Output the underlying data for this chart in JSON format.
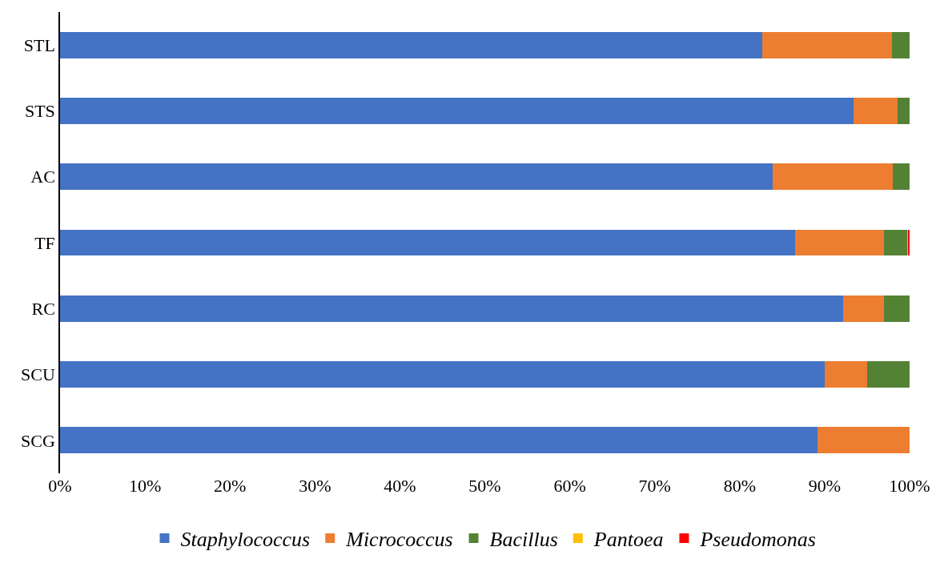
{
  "chart_data": {
    "type": "bar",
    "orientation": "horizontal",
    "stacked": true,
    "categories": [
      "STL",
      "STS",
      "AC",
      "TF",
      "RC",
      "SCU",
      "SCG"
    ],
    "series": [
      {
        "name": "Staphylococcus",
        "color": "#4472c4",
        "values": [
          82.7,
          93.4,
          83.9,
          86.5,
          92.2,
          90.0,
          89.2
        ]
      },
      {
        "name": "Micrococcus",
        "color": "#ed7d31",
        "values": [
          15.2,
          5.2,
          14.1,
          10.5,
          4.8,
          5.0,
          10.8
        ]
      },
      {
        "name": "Bacillus",
        "color": "#548235",
        "values": [
          2.1,
          1.4,
          2.0,
          2.8,
          3.0,
          5.0,
          0
        ]
      },
      {
        "name": "Pantoea",
        "color": "#ffc000",
        "values": [
          0,
          0,
          0,
          0.1,
          0,
          0,
          0
        ]
      },
      {
        "name": "Pseudomonas",
        "color": "#ff0000",
        "values": [
          0,
          0,
          0,
          0.1,
          0,
          0,
          0
        ]
      }
    ],
    "xlim": [
      0,
      100
    ],
    "xticks": [
      {
        "value": 0,
        "label": "0%"
      },
      {
        "value": 10,
        "label": "10%"
      },
      {
        "value": 20,
        "label": "20%"
      },
      {
        "value": 30,
        "label": "30%"
      },
      {
        "value": 40,
        "label": "40%"
      },
      {
        "value": 50,
        "label": "50%"
      },
      {
        "value": 60,
        "label": "60%"
      },
      {
        "value": 70,
        "label": "70%"
      },
      {
        "value": 80,
        "label": "80%"
      },
      {
        "value": 90,
        "label": "90%"
      },
      {
        "value": 100,
        "label": "100%"
      }
    ],
    "legend": "bottom"
  }
}
